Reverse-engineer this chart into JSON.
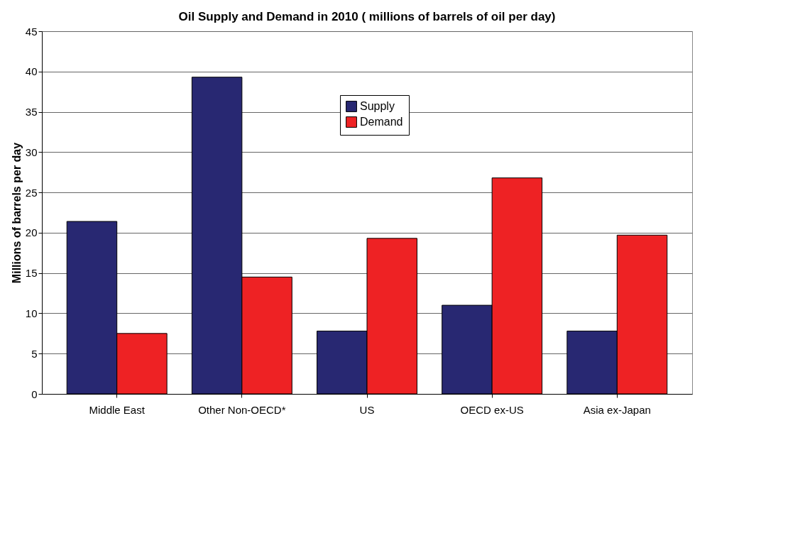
{
  "chart_data": {
    "type": "bar",
    "title": "Oil Supply and Demand in 2010 ( millions of barrels of oil per day)",
    "ylabel": "Millions of barrels per day",
    "categories": [
      "Middle East",
      "Other Non-OECD*",
      "US",
      "OECD ex-US",
      "Asia ex-Japan"
    ],
    "series": [
      {
        "name": "Supply",
        "color": "#282872",
        "values": [
          21.4,
          39.3,
          7.8,
          11.0,
          7.8
        ]
      },
      {
        "name": "Demand",
        "color": "#ee2224",
        "values": [
          7.5,
          14.5,
          19.3,
          26.8,
          19.7
        ]
      }
    ],
    "ylim": [
      0,
      45
    ],
    "yticks": [
      0,
      5,
      10,
      15,
      20,
      25,
      30,
      35,
      40,
      45
    ],
    "grid": "y",
    "legend": "top"
  }
}
